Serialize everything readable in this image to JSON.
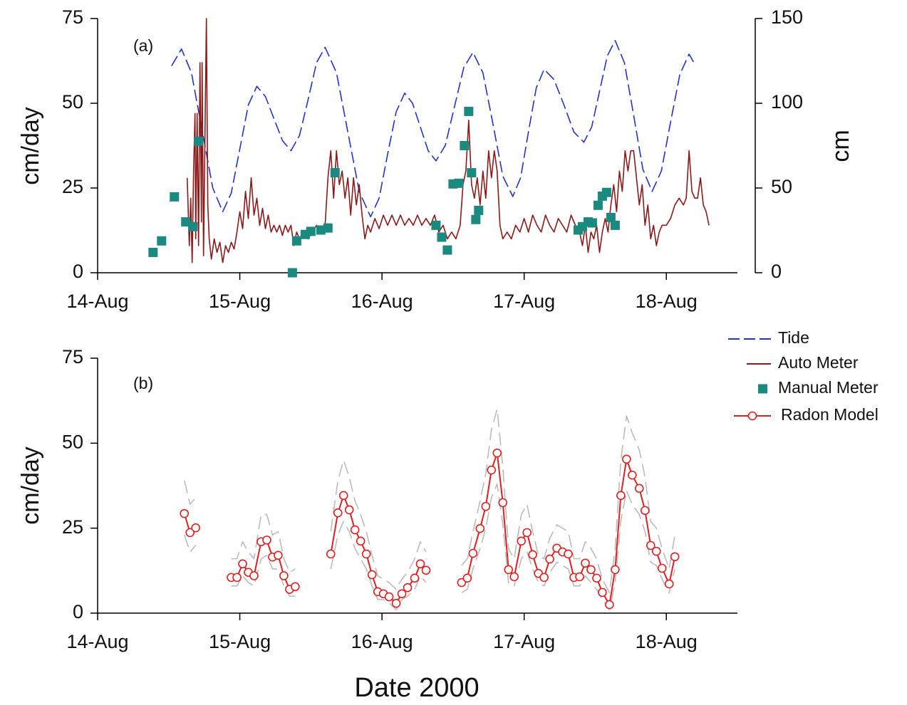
{
  "chart_data": [
    {
      "type": "line",
      "label": "(a)",
      "ylabel": "cm/day",
      "y2label": "cm",
      "xlim": [
        14,
        18.5
      ],
      "xticks": [
        {
          "value": 14,
          "label": "14-Aug"
        },
        {
          "value": 15,
          "label": "15-Aug"
        },
        {
          "value": 16,
          "label": "16-Aug"
        },
        {
          "value": 17,
          "label": "17-Aug"
        },
        {
          "value": 18,
          "label": "18-Aug"
        }
      ],
      "ylim": [
        0,
        75
      ],
      "yticks": [
        0,
        25,
        50,
        75
      ],
      "y2lim": [
        0,
        150
      ],
      "y2ticks": [
        0,
        50,
        100,
        150
      ],
      "series": [
        {
          "name": "Tide",
          "color": "#2233cc",
          "axis": "y2",
          "line": true,
          "dashed": true,
          "marker": null,
          "x": [
            14.52,
            14.59,
            14.66,
            14.735,
            14.81,
            14.88,
            14.94,
            15.0,
            15.06,
            15.12,
            15.18,
            15.24,
            15.3,
            15.36,
            15.42,
            15.48,
            15.54,
            15.6,
            15.68,
            15.76,
            15.84,
            15.92,
            15.98,
            16.04,
            16.1,
            16.16,
            16.215,
            16.27,
            16.325,
            16.38,
            16.445,
            16.51,
            16.575,
            16.64,
            16.71,
            16.78,
            16.85,
            16.92,
            16.975,
            17.03,
            17.085,
            17.14,
            17.21,
            17.28,
            17.35,
            17.42,
            17.475,
            17.53,
            17.585,
            17.64,
            17.705,
            17.77,
            17.835,
            17.9,
            17.965,
            18.03,
            18.095,
            18.16,
            18.2
          ],
          "values": [
            122,
            132,
            118,
            84,
            50,
            36,
            47,
            73,
            99,
            110,
            104,
            91,
            78,
            72,
            81,
            102,
            124,
            133,
            118,
            83,
            48,
            33,
            44,
            70,
            95,
            106,
            100,
            86,
            72,
            66,
            75,
            98,
            121,
            130,
            118,
            88,
            57,
            45,
            56,
            83,
            109,
            120,
            114,
            99,
            83,
            77,
            86,
            107,
            128,
            137,
            124,
            93,
            61,
            48,
            60,
            89,
            117,
            129,
            123
          ]
        },
        {
          "name": "Auto Meter",
          "color": "#8b1a1a",
          "line": true,
          "dashed": false,
          "marker": null,
          "x": [
            14.63,
            14.645,
            14.655,
            14.665,
            14.675,
            14.685,
            14.69,
            14.7,
            14.71,
            14.72,
            14.73,
            14.735,
            14.745,
            14.755,
            14.765,
            14.775,
            14.785,
            14.8,
            14.82,
            14.84,
            14.86,
            14.88,
            14.9,
            14.92,
            14.94,
            14.96,
            14.98,
            15.0,
            15.02,
            15.04,
            15.06,
            15.08,
            15.1,
            15.12,
            15.14,
            15.16,
            15.18,
            15.2,
            15.22,
            15.24,
            15.26,
            15.28,
            15.3,
            15.32,
            15.34,
            15.36,
            15.38,
            15.4,
            15.42,
            15.45,
            15.48,
            15.51,
            15.54,
            15.57,
            15.6,
            15.62,
            15.64,
            15.66,
            15.68,
            15.7,
            15.72,
            15.74,
            15.76,
            15.78,
            15.8,
            15.82,
            15.84,
            15.86,
            15.88,
            15.9,
            15.92,
            15.95,
            15.98,
            16.01,
            16.04,
            16.07,
            16.1,
            16.13,
            16.16,
            16.19,
            16.22,
            16.25,
            16.28,
            16.31,
            16.34,
            16.37,
            16.4,
            16.43,
            16.46,
            16.49,
            16.52,
            16.55,
            16.57,
            16.59,
            16.61,
            16.63,
            16.65,
            16.67,
            16.69,
            16.71,
            16.73,
            16.75,
            16.77,
            16.79,
            16.81,
            16.83,
            16.85,
            16.88,
            16.91,
            16.94,
            16.97,
            17.0,
            17.03,
            17.06,
            17.09,
            17.12,
            17.15,
            17.18,
            17.21,
            17.24,
            17.27,
            17.3,
            17.33,
            17.36,
            17.39,
            17.41,
            17.43,
            17.45,
            17.47,
            17.49,
            17.51,
            17.53,
            17.55,
            17.57,
            17.59,
            17.61,
            17.63,
            17.65,
            17.67,
            17.69,
            17.71,
            17.73,
            17.75,
            17.77,
            17.79,
            17.81,
            17.83,
            17.85,
            17.87,
            17.89,
            17.91,
            17.93,
            17.95,
            17.97,
            18.0,
            18.03,
            18.06,
            18.09,
            18.12,
            18.14,
            18.16,
            18.18,
            18.2,
            18.22,
            18.24,
            18.26,
            18.28,
            18.3
          ],
          "values": [
            28,
            8,
            22,
            3,
            30,
            47,
            10,
            47,
            8,
            62,
            15,
            62,
            5,
            40,
            75,
            20,
            10,
            4,
            10,
            6,
            9,
            3,
            8,
            6,
            9,
            7,
            12,
            18,
            13,
            24,
            16,
            28,
            17,
            22,
            14,
            19,
            13,
            17,
            12,
            14,
            12,
            14,
            11,
            14,
            12,
            14,
            8,
            12,
            10,
            12,
            10,
            12,
            14,
            12,
            14,
            28,
            36,
            22,
            36,
            26,
            30,
            22,
            28,
            17,
            28,
            20,
            26,
            17,
            10,
            14,
            12,
            16,
            13,
            17,
            14,
            17,
            14,
            17,
            14,
            16,
            14,
            17,
            14,
            16,
            14,
            17,
            12,
            14,
            10,
            12,
            10,
            14,
            26,
            30,
            45,
            26,
            22,
            28,
            20,
            30,
            22,
            36,
            28,
            36,
            30,
            14,
            10,
            12,
            10,
            14,
            12,
            16,
            12,
            17,
            14,
            12,
            17,
            14,
            12,
            16,
            14,
            12,
            17,
            14,
            12,
            8,
            14,
            6,
            12,
            10,
            14,
            6,
            12,
            16,
            12,
            20,
            26,
            18,
            30,
            24,
            36,
            30,
            36,
            36,
            28,
            20,
            26,
            14,
            20,
            10,
            14,
            8,
            12,
            14,
            14,
            16,
            20,
            22,
            20,
            22,
            36,
            24,
            22,
            22,
            28,
            20,
            18,
            14
          ]
        },
        {
          "name": "Manual Meter",
          "color": "#1a8a80",
          "line": false,
          "dashed": false,
          "marker": "square",
          "x": [
            14.39,
            14.45,
            14.54,
            14.62,
            14.67,
            14.71,
            15.37,
            15.4,
            15.46,
            15.5,
            15.57,
            15.62,
            15.67,
            16.38,
            16.42,
            16.46,
            16.5,
            16.54,
            16.58,
            16.61,
            16.63,
            16.66,
            16.68,
            17.38,
            17.41,
            17.45,
            17.48,
            17.52,
            17.55,
            17.58,
            17.61,
            17.64
          ],
          "values": [
            6,
            9.4,
            22.4,
            15,
            13.6,
            38.8,
            0,
            9.4,
            11.3,
            12.2,
            12.6,
            13.2,
            29.5,
            14,
            10.5,
            6.7,
            26.2,
            26.4,
            37.5,
            47.6,
            29.5,
            15.7,
            18.4,
            12.6,
            13.6,
            15,
            14.7,
            19.9,
            22.6,
            23.7,
            16.3,
            14
          ]
        }
      ]
    },
    {
      "type": "line",
      "label": "(b)",
      "ylabel": "cm/day",
      "xlabel": "Date 2000",
      "xlim": [
        14,
        18.5
      ],
      "xticks": [
        {
          "value": 14,
          "label": "14-Aug"
        },
        {
          "value": 15,
          "label": "15-Aug"
        },
        {
          "value": 16,
          "label": "16-Aug"
        },
        {
          "value": 17,
          "label": "17-Aug"
        },
        {
          "value": 18,
          "label": "18-Aug"
        }
      ],
      "ylim": [
        0,
        75
      ],
      "yticks": [
        0,
        25,
        50,
        75
      ],
      "x": [
        14.61,
        14.65,
        14.69,
        14.8,
        14.94,
        14.98,
        15.02,
        15.06,
        15.1,
        15.15,
        15.19,
        15.23,
        15.27,
        15.31,
        15.35,
        15.39,
        15.5,
        15.64,
        15.69,
        15.73,
        15.77,
        15.81,
        15.85,
        15.89,
        15.93,
        15.97,
        16.01,
        16.05,
        16.1,
        16.14,
        16.18,
        16.23,
        16.27,
        16.31,
        16.44,
        16.56,
        16.6,
        16.64,
        16.69,
        16.73,
        16.77,
        16.81,
        16.85,
        16.89,
        16.93,
        16.98,
        17.02,
        17.06,
        17.1,
        17.14,
        17.18,
        17.23,
        17.27,
        17.31,
        17.35,
        17.39,
        17.43,
        17.47,
        17.51,
        17.55,
        17.6,
        17.64,
        17.68,
        17.72,
        17.76,
        17.81,
        17.85,
        17.89,
        17.93,
        17.97,
        18.02,
        18.06
      ],
      "series": [
        {
          "color": "#bbbbbb",
          "line": true,
          "dashed": true,
          "marker": null,
          "values": [
            39,
            32,
            34,
            null,
            16,
            16,
            21,
            18,
            16,
            29,
            29,
            23,
            24,
            16,
            12,
            13,
            null,
            24,
            39,
            45,
            40,
            33,
            29,
            24,
            17,
            11,
            10,
            9,
            7,
            10,
            12,
            16,
            21,
            18,
            null,
            14,
            16,
            24,
            33,
            41,
            54,
            60,
            43,
            19,
            16,
            29,
            32,
            24,
            17,
            16,
            22,
            26,
            25,
            24,
            16,
            16,
            21,
            19,
            16,
            10,
            6,
            19,
            45,
            58,
            53,
            48,
            40,
            27,
            25,
            19,
            13,
            23
          ]
        },
        {
          "color": "#bbbbbb",
          "line": true,
          "dashed": true,
          "marker": null,
          "values": [
            23,
            18,
            20,
            null,
            8,
            8,
            11,
            9,
            8,
            16,
            17,
            13,
            13,
            8,
            5,
            5,
            null,
            13,
            23,
            27,
            24,
            19,
            16,
            13,
            8,
            4,
            4,
            3,
            1,
            4,
            5,
            7,
            11,
            9,
            null,
            6,
            7,
            13,
            19,
            25,
            34,
            38,
            26,
            9,
            8,
            16,
            18,
            13,
            9,
            8,
            12,
            15,
            14,
            13,
            8,
            8,
            11,
            9,
            7,
            4,
            1,
            9,
            27,
            36,
            32,
            29,
            24,
            15,
            14,
            10,
            6,
            13
          ]
        },
        {
          "name": "Radon Model",
          "color": "#e02020",
          "line": true,
          "dashed": false,
          "marker": "circle",
          "values": [
            29.3,
            23.7,
            25.1,
            null,
            10.5,
            10.5,
            14.5,
            12,
            11,
            21,
            21.5,
            16.5,
            17,
            11,
            7,
            7.8,
            null,
            17.4,
            29.5,
            34.6,
            30.4,
            24.5,
            21.2,
            17.4,
            11.3,
            6.3,
            5.7,
            4.8,
            2.9,
            5.7,
            7.5,
            10.3,
            14.5,
            12.6,
            null,
            9,
            10.3,
            17.6,
            24.9,
            31.4,
            42.1,
            47.1,
            32.5,
            12.8,
            10.7,
            21.2,
            23.7,
            17.2,
            11.7,
            10.5,
            15.9,
            19.1,
            18,
            17.4,
            10.5,
            10.7,
            14.7,
            12.8,
            10.3,
            6.1,
            2.5,
            12.8,
            34.6,
            45.3,
            40.6,
            36.7,
            30.2,
            19.9,
            18.2,
            13.2,
            8.6,
            16.6
          ]
        }
      ]
    }
  ]
}
